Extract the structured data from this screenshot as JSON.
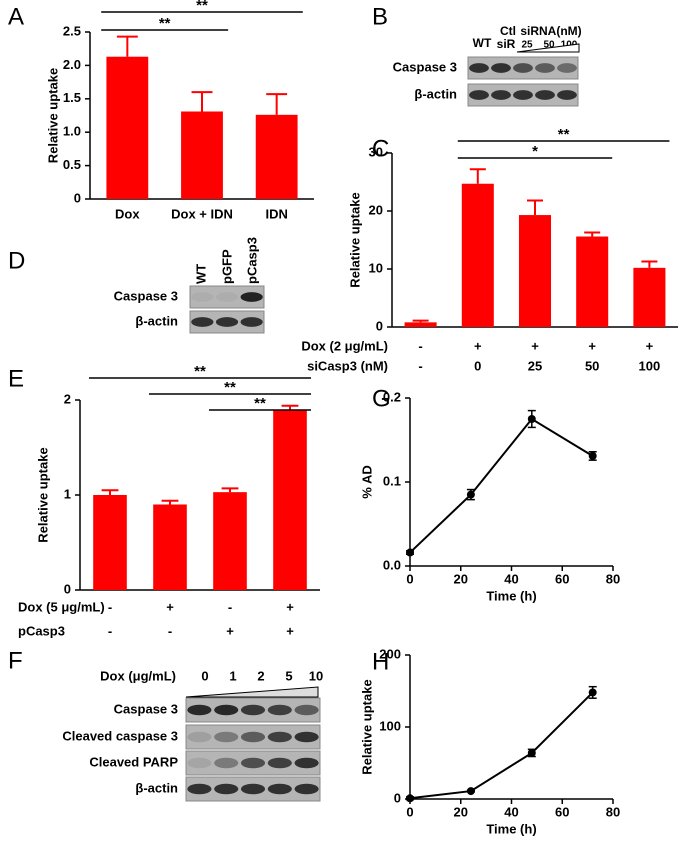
{
  "panel_labels": [
    "A",
    "B",
    "C",
    "D",
    "E",
    "F",
    "G",
    "H"
  ],
  "chart_data": [
    {
      "panel": "A",
      "type": "bar",
      "ylabel": "Relative uptake",
      "categories": [
        "Dox",
        "Dox + IDN",
        "IDN"
      ],
      "values": [
        2.13,
        1.31,
        1.26
      ],
      "errors": [
        0.3,
        0.29,
        0.31
      ],
      "color": "#ff0000",
      "ylim": [
        0,
        2.5
      ],
      "yticks": [
        0,
        0.5,
        {
          "value": 1,
          "label": "1.0"
        },
        1.5,
        {
          "value": 2,
          "label": "2.0"
        },
        2.5
      ],
      "significance": [
        {
          "label": "**",
          "between": [
            0,
            1
          ]
        },
        {
          "label": "**",
          "between": [
            0,
            2
          ]
        }
      ]
    },
    {
      "panel": "C",
      "type": "bar",
      "ylabel": "Relative uptake",
      "rows": [
        {
          "name": "Dox (2 μg/mL)",
          "labels": [
            "-",
            "+",
            "+",
            "+",
            "+"
          ]
        },
        {
          "name": "siCasp3 (nM)",
          "labels": [
            "-",
            "0",
            "25",
            "50",
            "100"
          ]
        }
      ],
      "values": [
        0.8,
        24.7,
        19.3,
        15.6,
        10.2
      ],
      "errors": [
        0.3,
        2.5,
        2.5,
        0.7,
        1.1
      ],
      "color": "#ff0000",
      "ylim": [
        0,
        30
      ],
      "yticks": [
        0,
        10,
        20,
        30
      ],
      "significance": [
        {
          "label": "*",
          "between": [
            1,
            3
          ]
        },
        {
          "label": "**",
          "between": [
            1,
            4
          ]
        }
      ]
    },
    {
      "panel": "E",
      "type": "bar",
      "ylabel": "Relative uptake",
      "rows": [
        {
          "name": "Dox (5 μg/mL)",
          "labels": [
            "-",
            "+",
            "-",
            "+"
          ]
        },
        {
          "name": "pCasp3",
          "labels": [
            "-",
            "-",
            "+",
            "+"
          ]
        }
      ],
      "values": [
        1.0,
        0.9,
        1.03,
        1.9
      ],
      "errors": [
        0.05,
        0.04,
        0.04,
        0.04
      ],
      "color": "#ff0000",
      "ylim": [
        0,
        2
      ],
      "yticks": [
        0,
        1,
        2
      ],
      "significance": [
        {
          "label": "**",
          "between": [
            2,
            3
          ]
        },
        {
          "label": "**",
          "between": [
            1,
            3
          ]
        },
        {
          "label": "**",
          "between": [
            0,
            3
          ]
        }
      ]
    },
    {
      "panel": "G",
      "type": "line",
      "xlabel": "Time (h)",
      "ylabel": "% AD",
      "color": "#000000",
      "x": [
        0,
        24,
        48,
        72
      ],
      "values": [
        0.016,
        0.085,
        0.175,
        0.131
      ],
      "errors": [
        0.002,
        0.006,
        0.01,
        0.005
      ],
      "xlim": [
        0,
        80
      ],
      "xticks": [
        0,
        20,
        40,
        60,
        80
      ],
      "ylim": [
        0,
        0.2
      ],
      "yticks": [
        {
          "value": 0,
          "label": "0.0"
        },
        0.1,
        0.2
      ]
    },
    {
      "panel": "H",
      "type": "line",
      "xlabel": "Time (h)",
      "ylabel": "Relative uptake",
      "color": "#000000",
      "x": [
        0,
        24,
        48,
        72
      ],
      "values": [
        1,
        11,
        64,
        148
      ],
      "errors": [
        2,
        1,
        5,
        8
      ],
      "xlim": [
        0,
        80
      ],
      "xticks": [
        0,
        20,
        40,
        60,
        80
      ],
      "ylim": [
        0,
        200
      ],
      "yticks": [
        0,
        100,
        200
      ]
    }
  ],
  "blots": {
    "B": {
      "header": [
        "WT",
        "Ctl",
        "siR",
        "siRNA(nM)",
        "25",
        "50",
        "100"
      ],
      "rows": [
        "Caspase 3",
        "β-actin"
      ]
    },
    "D": {
      "header": [
        "WT",
        "pGFP",
        "pCasp3"
      ],
      "rows": [
        "Caspase 3",
        "β-actin"
      ]
    },
    "F": {
      "treatment": "Dox (μg/mL)",
      "header": [
        "0",
        "1",
        "2",
        "5",
        "10"
      ],
      "rows": [
        "Caspase 3",
        "Cleaved caspase 3",
        "Cleaved PARP",
        "β-actin"
      ]
    }
  }
}
